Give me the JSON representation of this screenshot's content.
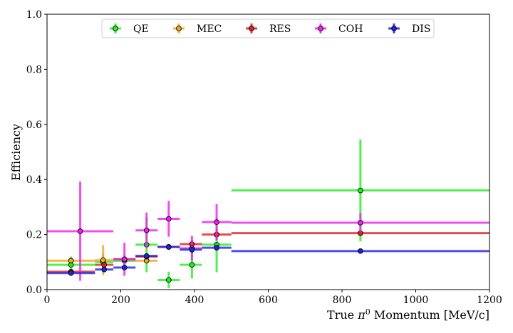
{
  "chart_data": {
    "type": "scatter",
    "xlabel_text": "True ",
    "xlabel_symbol": "π",
    "xlabel_sup": "0",
    "xlabel_rest": " Momentum [MeV/c]",
    "ylabel": "Efficiency",
    "xlim": [
      0,
      1200
    ],
    "ylim": [
      0,
      1.0
    ],
    "xticks": [
      0,
      200,
      400,
      600,
      800,
      1000,
      1200
    ],
    "yticks": [
      0.0,
      0.2,
      0.4,
      0.6,
      0.8,
      1.0
    ],
    "xtick_labels": [
      "0",
      "200",
      "400",
      "600",
      "800",
      "1000",
      "1200"
    ],
    "ytick_labels": [
      "0.0",
      "0.2",
      "0.4",
      "0.6",
      "0.8",
      "1.0"
    ],
    "grid": false,
    "legend_position": "top-center",
    "series": [
      {
        "name": "QE",
        "color": "#22ee22",
        "points": [
          {
            "x": 65,
            "xlo": 0,
            "xhi": 130,
            "y": 0.09,
            "yerr": 0.03
          },
          {
            "x": 152,
            "xlo": 130,
            "xhi": 180,
            "y": 0.1,
            "yerr": 0.03
          },
          {
            "x": 210,
            "xlo": 180,
            "xhi": 240,
            "y": 0.105,
            "yerr": 0.02
          },
          {
            "x": 270,
            "xlo": 240,
            "xhi": 300,
            "y": 0.163,
            "yerr": 0.1
          },
          {
            "x": 330,
            "xlo": 300,
            "xhi": 360,
            "y": 0.035,
            "yerr": 0.03
          },
          {
            "x": 393,
            "xlo": 360,
            "xhi": 420,
            "y": 0.09,
            "yerr": 0.05
          },
          {
            "x": 460,
            "xlo": 420,
            "xhi": 500,
            "y": 0.163,
            "yerr": 0.1
          },
          {
            "x": 850,
            "xlo": 500,
            "xhi": 1200,
            "y": 0.36,
            "yerr": 0.185
          }
        ]
      },
      {
        "name": "MEC",
        "color": "#f5a623",
        "points": [
          {
            "x": 65,
            "xlo": 0,
            "xhi": 130,
            "y": 0.105,
            "yerr": 0.0
          },
          {
            "x": 152,
            "xlo": 130,
            "xhi": 180,
            "y": 0.107,
            "yerr": 0.055
          },
          {
            "x": 210,
            "xlo": 180,
            "xhi": 240,
            "y": 0.11,
            "yerr": 0.0
          },
          {
            "x": 270,
            "xlo": 240,
            "xhi": 300,
            "y": 0.105,
            "yerr": 0.0
          }
        ]
      },
      {
        "name": "RES",
        "color": "#e02020",
        "points": [
          {
            "x": 65,
            "xlo": 0,
            "xhi": 130,
            "y": 0.065,
            "yerr": 0.005
          },
          {
            "x": 155,
            "xlo": 130,
            "xhi": 180,
            "y": 0.09,
            "yerr": 0.01
          },
          {
            "x": 210,
            "xlo": 180,
            "xhi": 240,
            "y": 0.11,
            "yerr": 0.01
          },
          {
            "x": 270,
            "xlo": 240,
            "xhi": 300,
            "y": 0.12,
            "yerr": 0.01
          },
          {
            "x": 330,
            "xlo": 300,
            "xhi": 360,
            "y": 0.155,
            "yerr": 0.01
          },
          {
            "x": 393,
            "xlo": 360,
            "xhi": 420,
            "y": 0.165,
            "yerr": 0.015
          },
          {
            "x": 460,
            "xlo": 420,
            "xhi": 500,
            "y": 0.2,
            "yerr": 0.02
          },
          {
            "x": 850,
            "xlo": 500,
            "xhi": 1200,
            "y": 0.205,
            "yerr": 0.01
          }
        ]
      },
      {
        "name": "COH",
        "color": "#ee22ee",
        "points": [
          {
            "x": 90,
            "xlo": 0,
            "xhi": 180,
            "y": 0.212,
            "yerr": 0.18
          },
          {
            "x": 210,
            "xlo": 180,
            "xhi": 240,
            "y": 0.11,
            "yerr": 0.06
          },
          {
            "x": 270,
            "xlo": 240,
            "xhi": 300,
            "y": 0.215,
            "yerr": 0.065
          },
          {
            "x": 330,
            "xlo": 300,
            "xhi": 360,
            "y": 0.257,
            "yerr": 0.065
          },
          {
            "x": 393,
            "xlo": 360,
            "xhi": 420,
            "y": 0.15,
            "yerr": 0.045
          },
          {
            "x": 460,
            "xlo": 420,
            "xhi": 500,
            "y": 0.245,
            "yerr": 0.065
          },
          {
            "x": 850,
            "xlo": 500,
            "xhi": 1200,
            "y": 0.243,
            "yerr": 0.035
          }
        ]
      },
      {
        "name": "DIS",
        "color": "#2222dd",
        "points": [
          {
            "x": 65,
            "xlo": 0,
            "xhi": 130,
            "y": 0.06,
            "yerr": 0.005
          },
          {
            "x": 155,
            "xlo": 130,
            "xhi": 180,
            "y": 0.073,
            "yerr": 0.01
          },
          {
            "x": 210,
            "xlo": 180,
            "xhi": 240,
            "y": 0.08,
            "yerr": 0.01
          },
          {
            "x": 270,
            "xlo": 240,
            "xhi": 300,
            "y": 0.122,
            "yerr": 0.01
          },
          {
            "x": 330,
            "xlo": 300,
            "xhi": 360,
            "y": 0.155,
            "yerr": 0.01
          },
          {
            "x": 393,
            "xlo": 360,
            "xhi": 420,
            "y": 0.145,
            "yerr": 0.01
          },
          {
            "x": 460,
            "xlo": 420,
            "xhi": 500,
            "y": 0.152,
            "yerr": 0.01
          },
          {
            "x": 850,
            "xlo": 500,
            "xhi": 1200,
            "y": 0.14,
            "yerr": 0.005
          }
        ]
      }
    ]
  }
}
